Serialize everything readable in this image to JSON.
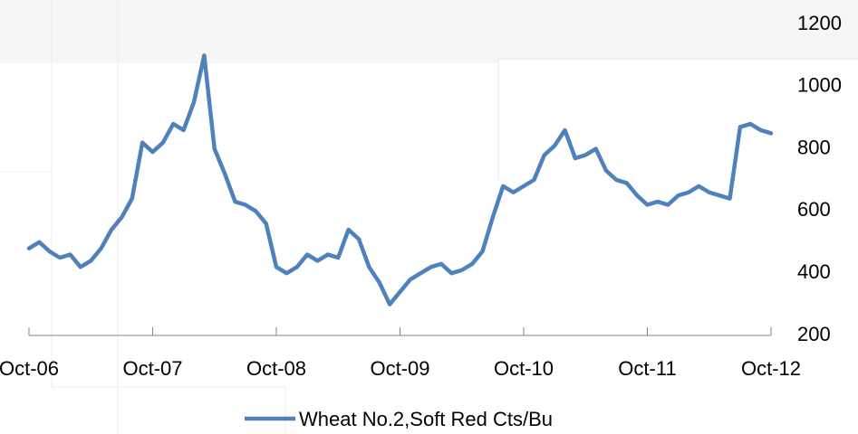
{
  "chart_data": {
    "type": "line",
    "categories": [
      "Oct-06",
      null,
      null,
      null,
      null,
      null,
      null,
      null,
      null,
      null,
      null,
      null,
      "Oct-07",
      null,
      null,
      null,
      null,
      null,
      null,
      null,
      null,
      null,
      null,
      null,
      "Oct-08",
      null,
      null,
      null,
      null,
      null,
      null,
      null,
      null,
      null,
      null,
      null,
      "Oct-09",
      null,
      null,
      null,
      null,
      null,
      null,
      null,
      null,
      null,
      null,
      null,
      "Oct-10",
      null,
      null,
      null,
      null,
      null,
      null,
      null,
      null,
      null,
      null,
      null,
      "Oct-11",
      null,
      null,
      null,
      null,
      null,
      null,
      null,
      null,
      null,
      null,
      null,
      "Oct-12"
    ],
    "series": [
      {
        "name": "Wheat No.2,Soft Red Cts/Bu",
        "color": "#4f81bd",
        "values": [
          480,
          500,
          470,
          450,
          460,
          420,
          440,
          480,
          540,
          580,
          640,
          820,
          790,
          820,
          880,
          860,
          950,
          1100,
          800,
          720,
          630,
          620,
          600,
          560,
          420,
          400,
          420,
          460,
          440,
          460,
          450,
          540,
          510,
          420,
          370,
          300,
          340,
          380,
          400,
          420,
          430,
          400,
          410,
          430,
          470,
          580,
          680,
          660,
          680,
          700,
          780,
          810,
          860,
          770,
          780,
          800,
          730,
          700,
          690,
          650,
          620,
          630,
          620,
          650,
          660,
          680,
          660,
          650,
          640,
          870,
          880,
          860,
          850
        ]
      }
    ],
    "ylim": [
      200,
      1200
    ],
    "yticks": [
      200,
      400,
      600,
      800,
      1000,
      1200
    ],
    "y_axis_side": "right",
    "grid": false,
    "legend": "bottom"
  }
}
